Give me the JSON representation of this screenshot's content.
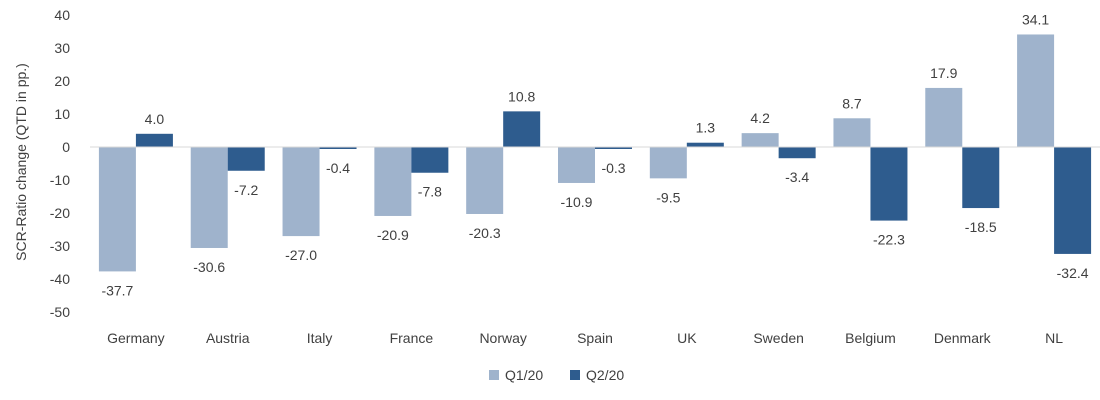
{
  "chart_data": {
    "type": "bar",
    "title": "",
    "xlabel": "",
    "ylabel": "SCR-Ratio change (QTD in pp.)",
    "ylim": [
      -50,
      40
    ],
    "yticks": [
      40,
      30,
      20,
      10,
      0,
      -10,
      -20,
      -30,
      -40,
      -50
    ],
    "tick_labels": [
      "40",
      "30",
      "20",
      "10",
      "0",
      "-10",
      "-20",
      "-30",
      "-40",
      "-50"
    ],
    "legend_position": "bottom-center",
    "categories": [
      "Germany",
      "Austria",
      "Italy",
      "France",
      "Norway",
      "Spain",
      "UK",
      "Sweden",
      "Belgium",
      "Denmark",
      "NL"
    ],
    "series": [
      {
        "name": "Q1/20",
        "color": "#9fb3cc",
        "values": [
          -37.7,
          -30.6,
          -27.0,
          -20.9,
          -20.3,
          -10.9,
          -9.5,
          4.2,
          8.7,
          17.9,
          34.1
        ],
        "labels": [
          "-37.7",
          "-30.6",
          "-27.0",
          "-20.9",
          "-20.3",
          "-10.9",
          "-9.5",
          "4.2",
          "8.7",
          "17.9",
          "34.1"
        ]
      },
      {
        "name": "Q2/20",
        "color": "#2e5c8e",
        "values": [
          4.0,
          -7.2,
          -0.4,
          -7.8,
          10.8,
          -0.3,
          1.3,
          -3.4,
          -22.3,
          -18.5,
          -32.4
        ],
        "labels": [
          "4.0",
          "-7.2",
          "-0.4",
          "-7.8",
          "10.8",
          "-0.3",
          "1.3",
          "-3.4",
          "-22.3",
          "-18.5",
          "-32.4"
        ]
      }
    ]
  }
}
